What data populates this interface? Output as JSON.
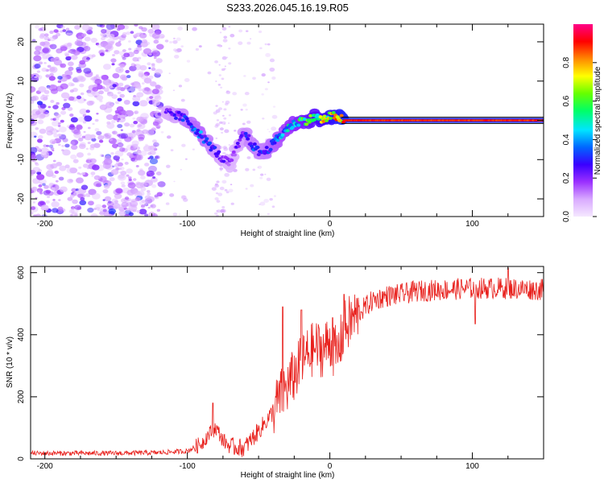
{
  "figure_title": "S233.2026.045.16.19.R05",
  "chart_data": [
    {
      "type": "heatmap",
      "title": "S233.2026.045.16.19.R05",
      "xlabel": "Height of straight line (km)",
      "ylabel": "Frequency (Hz)",
      "xlim": [
        -210,
        150
      ],
      "ylim": [
        -24.5,
        24.5
      ],
      "xticks": [
        -200,
        -100,
        0,
        100
      ],
      "yticks": [
        -20,
        -10,
        0,
        10,
        20
      ],
      "colorbar": {
        "label": "Normalized spectral amplitude",
        "range": [
          0,
          1
        ],
        "ticks": [
          0.0,
          0.2,
          0.4,
          0.6,
          0.8
        ],
        "colormap": [
          "#f5e8ff",
          "#d9aaff",
          "#9b30ff",
          "#3a00ff",
          "#0066ff",
          "#00e5ff",
          "#00ff66",
          "#66ff00",
          "#ffff00",
          "#ff8800",
          "#ff0000",
          "#ff0088"
        ]
      },
      "ridge": {
        "x": [
          -115,
          -105,
          -100,
          -95,
          -90,
          -85,
          -80,
          -75,
          -70,
          -65,
          -60,
          -55,
          -50,
          -45,
          -40,
          -35,
          -30,
          -25,
          -20,
          -15,
          -10,
          -5,
          0,
          5,
          10,
          20,
          40,
          80,
          120,
          150
        ],
        "y": [
          2,
          1,
          0,
          -2,
          -4,
          -6,
          -8,
          -10,
          -11,
          -7,
          -3,
          -6,
          -8,
          -8,
          -6,
          -4,
          -2,
          -1,
          0,
          0,
          1,
          0,
          1,
          1,
          0,
          0,
          0,
          0,
          0,
          0
        ],
        "amplitude": [
          0.25,
          0.3,
          0.35,
          0.4,
          0.4,
          0.35,
          0.3,
          0.25,
          0.2,
          0.25,
          0.3,
          0.35,
          0.35,
          0.35,
          0.4,
          0.45,
          0.5,
          0.55,
          0.6,
          0.65,
          0.7,
          0.75,
          0.8,
          0.85,
          0.9,
          0.9,
          0.88,
          0.88,
          0.88,
          0.88
        ]
      }
    },
    {
      "type": "line",
      "xlabel": "Height of straight line (km)",
      "ylabel": "SNR (10 * v/v)",
      "xlim": [
        -210,
        150
      ],
      "ylim": [
        0,
        620
      ],
      "xticks": [
        -200,
        -100,
        0,
        100
      ],
      "yticks": [
        0,
        200,
        400,
        600
      ],
      "series": [
        {
          "name": "SNR",
          "color": "#e8201c",
          "x": [
            -210,
            -180,
            -150,
            -120,
            -100,
            -90,
            -85,
            -80,
            -75,
            -70,
            -60,
            -50,
            -40,
            -35,
            -30,
            -25,
            -20,
            -15,
            -10,
            -5,
            0,
            5,
            10,
            20,
            30,
            40,
            50,
            60,
            80,
            100,
            120,
            150
          ],
          "y": [
            18,
            18,
            18,
            20,
            25,
            50,
            80,
            100,
            60,
            40,
            35,
            90,
            150,
            200,
            230,
            270,
            310,
            340,
            360,
            350,
            380,
            330,
            420,
            470,
            510,
            525,
            530,
            540,
            545,
            550,
            550,
            545
          ],
          "spikes": [
            {
              "x": -82,
              "y": 180
            },
            {
              "x": -33,
              "y": 490
            },
            {
              "x": -20,
              "y": 480
            },
            {
              "x": 2,
              "y": 455
            },
            {
              "x": 10,
              "y": 530
            },
            {
              "x": 102,
              "y": 435
            },
            {
              "x": 125,
              "y": 615
            }
          ]
        }
      ]
    }
  ]
}
